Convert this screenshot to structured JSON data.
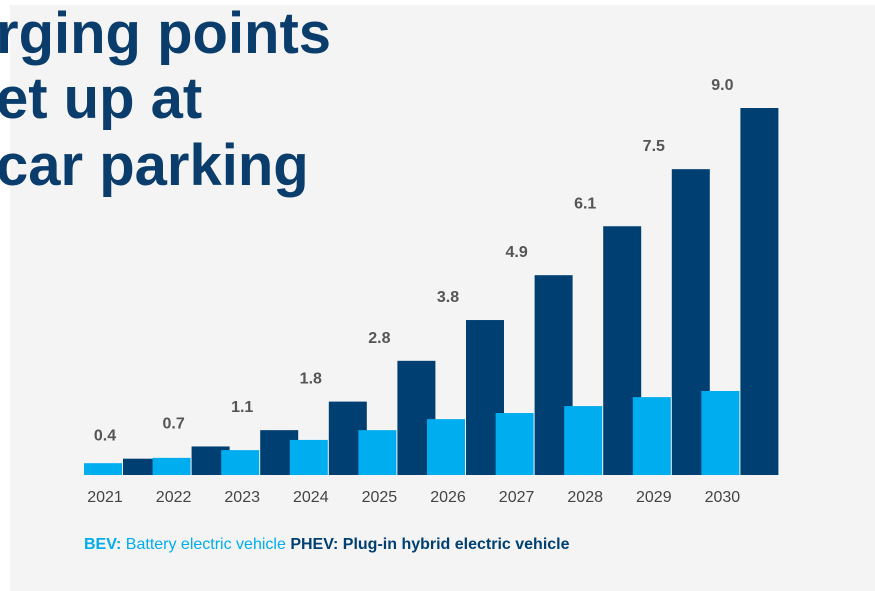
{
  "chart_data": {
    "type": "bar",
    "title_lines": [
      "rging points",
      "et up at",
      "car parking"
    ],
    "categories": [
      "2021",
      "2022",
      "2023",
      "2024",
      "2025",
      "2026",
      "2027",
      "2028",
      "2029",
      "2030"
    ],
    "series": [
      {
        "name": "BEV:",
        "description": "Battery electric vehicle",
        "color": "#00adef",
        "values": [
          0.29,
          0.42,
          0.61,
          0.86,
          1.1,
          1.37,
          1.52,
          1.69,
          1.91,
          2.06
        ]
      },
      {
        "name": "PHEV:",
        "description": "Plug-in hybrid electric vehicle",
        "color": "#003f72",
        "values": [
          0.4,
          0.7,
          1.1,
          1.8,
          2.8,
          3.8,
          4.9,
          6.1,
          7.5,
          9.0
        ],
        "value_labels": [
          "0.4",
          "0.7",
          "1.1",
          "1.8",
          "2.8",
          "3.8",
          "4.9",
          "6.1",
          "7.5",
          "9.0"
        ]
      }
    ]
  }
}
